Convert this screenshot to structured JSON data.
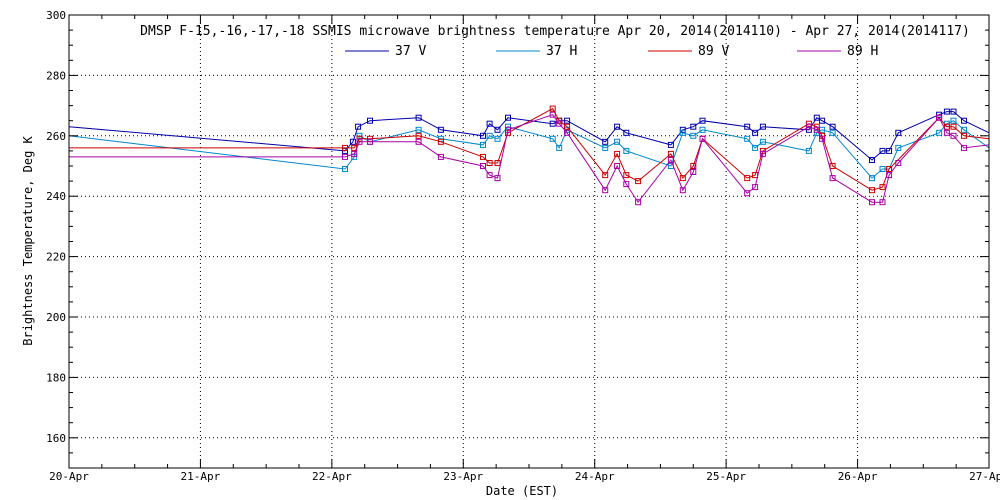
{
  "chart_data": {
    "type": "line",
    "title": "DMSP F-15,-16,-17,-18 SSMIS microwave brightness temperature Apr 20, 2014(2014110) - Apr 27, 2014(2014117)",
    "xlabel": "Date (EST)",
    "ylabel": "Brightness Temperature, Deg K",
    "xlim": [
      0,
      7
    ],
    "ylim": [
      150,
      300
    ],
    "x_ticks": [
      {
        "value": 0,
        "label": "20-Apr"
      },
      {
        "value": 1,
        "label": "21-Apr"
      },
      {
        "value": 2,
        "label": "22-Apr"
      },
      {
        "value": 3,
        "label": "23-Apr"
      },
      {
        "value": 4,
        "label": "24-Apr"
      },
      {
        "value": 5,
        "label": "25-Apr"
      },
      {
        "value": 6,
        "label": "26-Apr"
      },
      {
        "value": 7,
        "label": "27-Apr"
      }
    ],
    "y_ticks": [
      {
        "value": 160,
        "label": "160"
      },
      {
        "value": 180,
        "label": "180"
      },
      {
        "value": 200,
        "label": "200"
      },
      {
        "value": 220,
        "label": "220"
      },
      {
        "value": 240,
        "label": "240"
      },
      {
        "value": 260,
        "label": "260"
      },
      {
        "value": 280,
        "label": "280"
      },
      {
        "value": 300,
        "label": "300"
      }
    ],
    "grid": true,
    "legend_position": "top-center",
    "series": [
      {
        "name": "37 V",
        "color": "#0000aa",
        "x": [
          0.0,
          2.1,
          2.16,
          2.2,
          2.29,
          2.66,
          2.83,
          3.15,
          3.2,
          3.26,
          3.34,
          3.68,
          3.73,
          3.79,
          4.08,
          4.17,
          4.24,
          4.58,
          4.67,
          4.75,
          4.82,
          5.16,
          5.22,
          5.28,
          5.63,
          5.69,
          5.73,
          5.81,
          6.11,
          6.19,
          6.24,
          6.31,
          6.62,
          6.68,
          6.73,
          6.81,
          7.0
        ],
        "y": [
          263,
          255,
          258,
          263,
          265,
          266,
          262,
          260,
          264,
          262,
          266,
          264,
          265,
          265,
          258,
          263,
          261,
          257,
          262,
          263,
          265,
          263,
          261,
          263,
          262,
          266,
          265,
          263,
          252,
          255,
          255,
          261,
          267,
          268,
          268,
          265,
          261
        ]
      },
      {
        "name": "37 H",
        "color": "#0088cc",
        "x": [
          0.0,
          2.1,
          2.17,
          2.21,
          2.29,
          2.66,
          2.83,
          3.15,
          3.2,
          3.26,
          3.34,
          3.68,
          3.73,
          3.79,
          4.08,
          4.17,
          4.24,
          4.58,
          4.67,
          4.75,
          4.82,
          5.16,
          5.22,
          5.28,
          5.63,
          5.69,
          5.73,
          5.81,
          6.11,
          6.19,
          6.24,
          6.31,
          6.62,
          6.68,
          6.73,
          6.81,
          7.0
        ],
        "y": [
          260,
          249,
          253,
          260,
          258,
          262,
          259,
          257,
          260,
          259,
          263,
          259,
          256,
          262,
          256,
          258,
          255,
          250,
          261,
          260,
          262,
          259,
          256,
          258,
          255,
          261,
          262,
          261,
          246,
          249,
          249,
          256,
          261,
          264,
          265,
          262,
          256
        ]
      },
      {
        "name": "89 V",
        "color": "#cc0000",
        "x": [
          0.0,
          2.1,
          2.17,
          2.21,
          2.29,
          2.66,
          2.83,
          3.15,
          3.2,
          3.26,
          3.34,
          3.68,
          3.73,
          3.79,
          4.08,
          4.17,
          4.24,
          4.33,
          4.58,
          4.67,
          4.75,
          4.82,
          5.16,
          5.22,
          5.28,
          5.63,
          5.69,
          5.73,
          5.81,
          6.11,
          6.19,
          6.24,
          6.62,
          6.68,
          6.73,
          6.81,
          7.0
        ],
        "y": [
          256,
          256,
          256,
          259,
          259,
          260,
          258,
          253,
          251,
          251,
          261,
          269,
          265,
          263,
          247,
          254,
          247,
          245,
          254,
          246,
          250,
          259,
          246,
          247,
          255,
          264,
          263,
          260,
          250,
          242,
          243,
          249,
          266,
          263,
          263,
          260,
          259
        ]
      },
      {
        "name": "89 H",
        "color": "#aa00aa",
        "x": [
          0.0,
          2.1,
          2.17,
          2.21,
          2.29,
          2.66,
          2.83,
          3.15,
          3.2,
          3.26,
          3.34,
          3.68,
          3.73,
          3.79,
          4.08,
          4.17,
          4.24,
          4.33,
          4.58,
          4.67,
          4.75,
          4.82,
          5.16,
          5.22,
          5.28,
          5.63,
          5.69,
          5.73,
          5.81,
          6.11,
          6.19,
          6.24,
          6.31,
          6.62,
          6.68,
          6.73,
          6.81,
          7.0
        ],
        "y": [
          253,
          253,
          254,
          258,
          258,
          258,
          253,
          250,
          247,
          246,
          262,
          267,
          264,
          261,
          242,
          250,
          244,
          238,
          252,
          242,
          248,
          259,
          241,
          243,
          254,
          263,
          262,
          259,
          246,
          238,
          238,
          247,
          251,
          266,
          261,
          260,
          256,
          257
        ]
      }
    ]
  }
}
